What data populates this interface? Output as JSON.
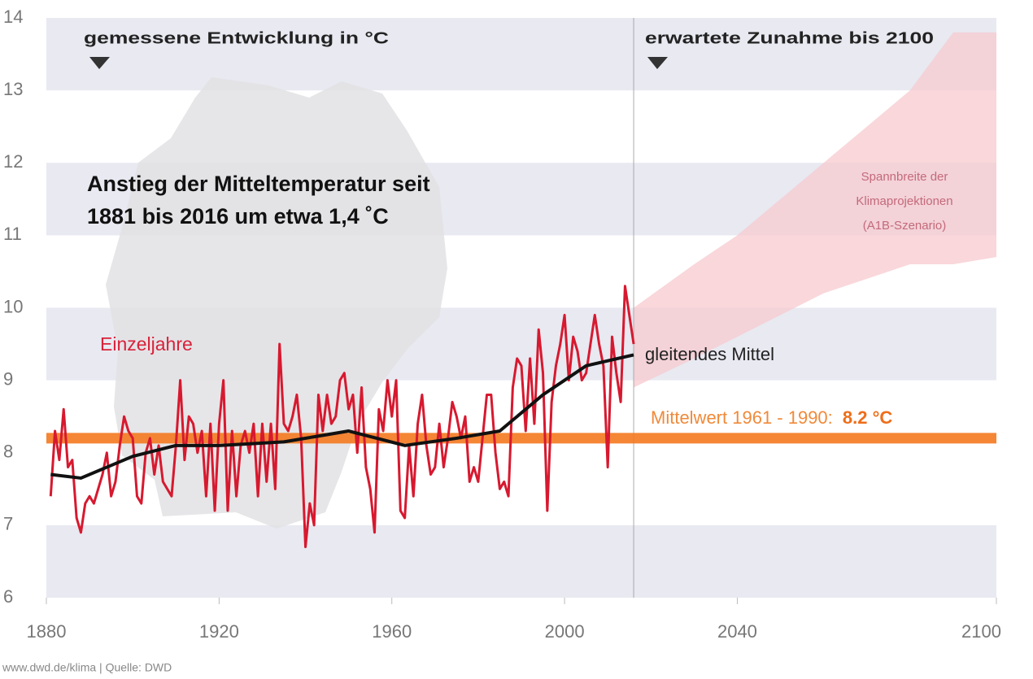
{
  "chart_data": {
    "type": "line",
    "xlim": [
      1880,
      2100
    ],
    "xticks": [
      1880,
      1920,
      1960,
      2000,
      2040,
      2100
    ],
    "ylim": [
      6,
      14
    ],
    "yticks": [
      6,
      7,
      8,
      9,
      10,
      11,
      12,
      13,
      14
    ],
    "bands": [
      [
        6,
        7
      ],
      [
        9,
        10
      ],
      [
        11,
        12
      ],
      [
        13,
        14
      ]
    ],
    "left_heading": "gemessene Entwicklung in °C",
    "right_heading": "erwartete Zunahme bis 2100",
    "headline": [
      "Anstieg der Mitteltemperatur seit",
      "1881 bis 2016 um etwa 1,4 ˚C"
    ],
    "series": [
      {
        "name": "Einzeljahre",
        "color": "#d7192f",
        "x": [
          1881,
          1882,
          1883,
          1884,
          1885,
          1886,
          1887,
          1888,
          1889,
          1890,
          1891,
          1892,
          1893,
          1894,
          1895,
          1896,
          1897,
          1898,
          1899,
          1900,
          1901,
          1902,
          1903,
          1904,
          1905,
          1906,
          1907,
          1908,
          1909,
          1910,
          1911,
          1912,
          1913,
          1914,
          1915,
          1916,
          1917,
          1918,
          1919,
          1920,
          1921,
          1922,
          1923,
          1924,
          1925,
          1926,
          1927,
          1928,
          1929,
          1930,
          1931,
          1932,
          1933,
          1934,
          1935,
          1936,
          1937,
          1938,
          1939,
          1940,
          1941,
          1942,
          1943,
          1944,
          1945,
          1946,
          1947,
          1948,
          1949,
          1950,
          1951,
          1952,
          1953,
          1954,
          1955,
          1956,
          1957,
          1958,
          1959,
          1960,
          1961,
          1962,
          1963,
          1964,
          1965,
          1966,
          1967,
          1968,
          1969,
          1970,
          1971,
          1972,
          1973,
          1974,
          1975,
          1976,
          1977,
          1978,
          1979,
          1980,
          1981,
          1982,
          1983,
          1984,
          1985,
          1986,
          1987,
          1988,
          1989,
          1990,
          1991,
          1992,
          1993,
          1994,
          1995,
          1996,
          1997,
          1998,
          1999,
          2000,
          2001,
          2002,
          2003,
          2004,
          2005,
          2006,
          2007,
          2008,
          2009,
          2010,
          2011,
          2012,
          2013,
          2014,
          2015,
          2016
        ],
        "values": [
          7.4,
          8.3,
          7.9,
          8.6,
          7.8,
          7.9,
          7.1,
          6.9,
          7.3,
          7.4,
          7.3,
          7.5,
          7.7,
          8.0,
          7.4,
          7.6,
          8.1,
          8.5,
          8.3,
          8.2,
          7.4,
          7.3,
          8.0,
          8.2,
          7.7,
          8.1,
          7.6,
          7.5,
          7.4,
          8.1,
          9.0,
          7.9,
          8.5,
          8.4,
          8.0,
          8.3,
          7.4,
          8.4,
          7.2,
          8.4,
          9.0,
          7.2,
          8.3,
          7.4,
          8.1,
          8.3,
          8.0,
          8.4,
          7.4,
          8.4,
          7.6,
          8.4,
          7.5,
          9.5,
          8.4,
          8.3,
          8.5,
          8.8,
          8.2,
          6.7,
          7.3,
          7.0,
          8.8,
          8.3,
          8.8,
          8.4,
          8.5,
          9.0,
          9.1,
          8.6,
          8.8,
          8.0,
          8.9,
          7.8,
          7.5,
          6.9,
          8.6,
          8.3,
          9.0,
          8.5,
          9.0,
          7.2,
          7.1,
          8.1,
          7.4,
          8.4,
          8.8,
          8.1,
          7.7,
          7.8,
          8.4,
          7.8,
          8.2,
          8.7,
          8.5,
          8.2,
          8.5,
          7.6,
          7.8,
          7.6,
          8.2,
          8.8,
          8.8,
          8.0,
          7.5,
          7.6,
          7.4,
          8.9,
          9.3,
          9.2,
          8.3,
          9.3,
          8.4,
          9.7,
          9.1,
          7.2,
          8.7,
          9.2,
          9.5,
          9.9,
          9.0,
          9.6,
          9.4,
          9.0,
          9.1,
          9.5,
          9.9,
          9.5,
          9.2,
          7.8,
          9.6,
          9.1,
          8.7,
          10.3,
          9.9,
          9.5
        ]
      },
      {
        "name": "gleitendes Mittel",
        "color": "#111111",
        "x": [
          1881,
          1888,
          1900,
          1910,
          1920,
          1935,
          1945,
          1950,
          1963,
          1975,
          1985,
          1995,
          2005,
          2016
        ],
        "values": [
          7.7,
          7.65,
          7.95,
          8.1,
          8.1,
          8.15,
          8.25,
          8.3,
          8.1,
          8.2,
          8.3,
          8.8,
          9.2,
          9.35
        ]
      }
    ],
    "projection": {
      "label": [
        "Spannbreite der",
        "Klimaprojektionen",
        "(A1B-Szenario)"
      ],
      "color": "#f7c9cf",
      "x": [
        2016,
        2030,
        2040,
        2050,
        2060,
        2070,
        2080,
        2090,
        2100
      ],
      "lower": [
        8.9,
        9.3,
        9.6,
        9.9,
        10.2,
        10.4,
        10.6,
        10.6,
        10.7
      ],
      "upper": [
        10.0,
        10.6,
        11.0,
        11.5,
        12.0,
        12.5,
        13.0,
        13.8,
        13.8
      ]
    },
    "mean": {
      "label": "Mittelwert 1961 - 1990:",
      "value": 8.2,
      "value_label": "8.2 °C",
      "color": "#f47a20"
    },
    "source": "www.dwd.de/klima | Quelle: DWD"
  }
}
